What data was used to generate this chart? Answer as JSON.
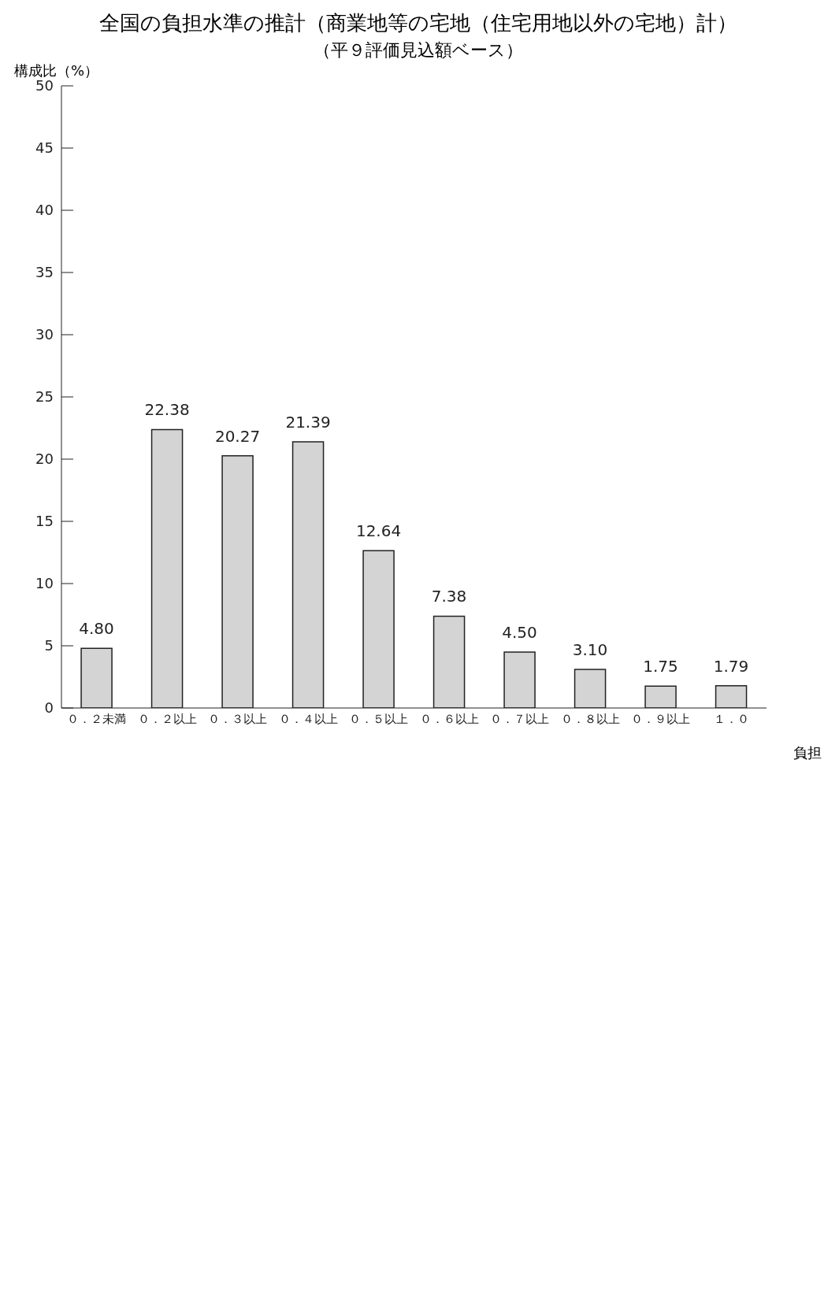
{
  "chart_data": {
    "type": "bar",
    "title": "全国の負担水準の推計（商業地等の宅地（住宅用地以外の宅地）計）",
    "subtitle": "（平９評価見込額ベース）",
    "ylabel": "構成比（%）",
    "xlabel": "負担",
    "categories": [
      "０．２未満",
      "０．２以上",
      "０．３以上",
      "０．４以上",
      "０．５以上",
      "０．６以上",
      "０．７以上",
      "０．８以上",
      "０．９以上",
      "１．０"
    ],
    "values": [
      4.8,
      22.38,
      20.27,
      21.39,
      12.64,
      7.38,
      4.5,
      3.1,
      1.75,
      1.79
    ],
    "value_labels": [
      "4.80",
      "22.38",
      "20.27",
      "21.39",
      "12.64",
      "7.38",
      "4.50",
      "3.10",
      "1.75",
      "1.79"
    ],
    "color": "#d4d4d4",
    "ylim": [
      0,
      50
    ],
    "yticks": [
      0,
      5,
      10,
      15,
      20,
      25,
      30,
      35,
      40,
      45,
      50
    ],
    "grid": false,
    "legend": false
  }
}
